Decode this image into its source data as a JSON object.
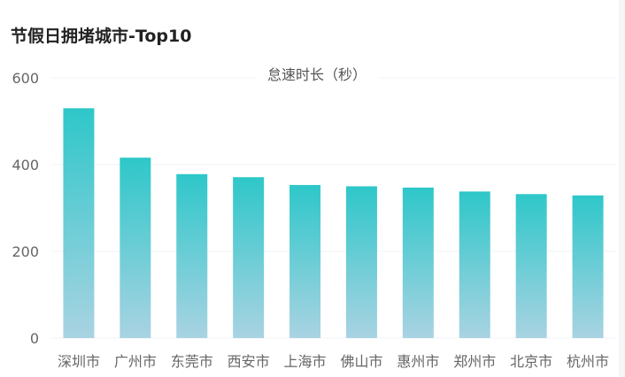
{
  "title": "节假日拥堵城市-Top10",
  "colors": {
    "bar_top": "#2ec7c9",
    "bar_bottom": "#a9d3e2",
    "grid": "#f0f3f5",
    "axis_text": "#666666",
    "title": "#222222"
  },
  "chart_data": {
    "type": "bar",
    "title": "节假日拥堵城市-Top10",
    "categories": [
      "深圳市",
      "广州市",
      "东莞市",
      "西安市",
      "上海市",
      "佛山市",
      "惠州市",
      "郑州市",
      "北京市",
      "杭州市"
    ],
    "series": [
      {
        "name": "怠速时长（秒）",
        "values": [
          530,
          416,
          378,
          371,
          353,
          350,
          347,
          338,
          332,
          329
        ]
      }
    ],
    "ylim": [
      0,
      600
    ],
    "yticks": [
      "0",
      "200",
      "400",
      "600"
    ],
    "grid": true,
    "legend": "top-center"
  }
}
